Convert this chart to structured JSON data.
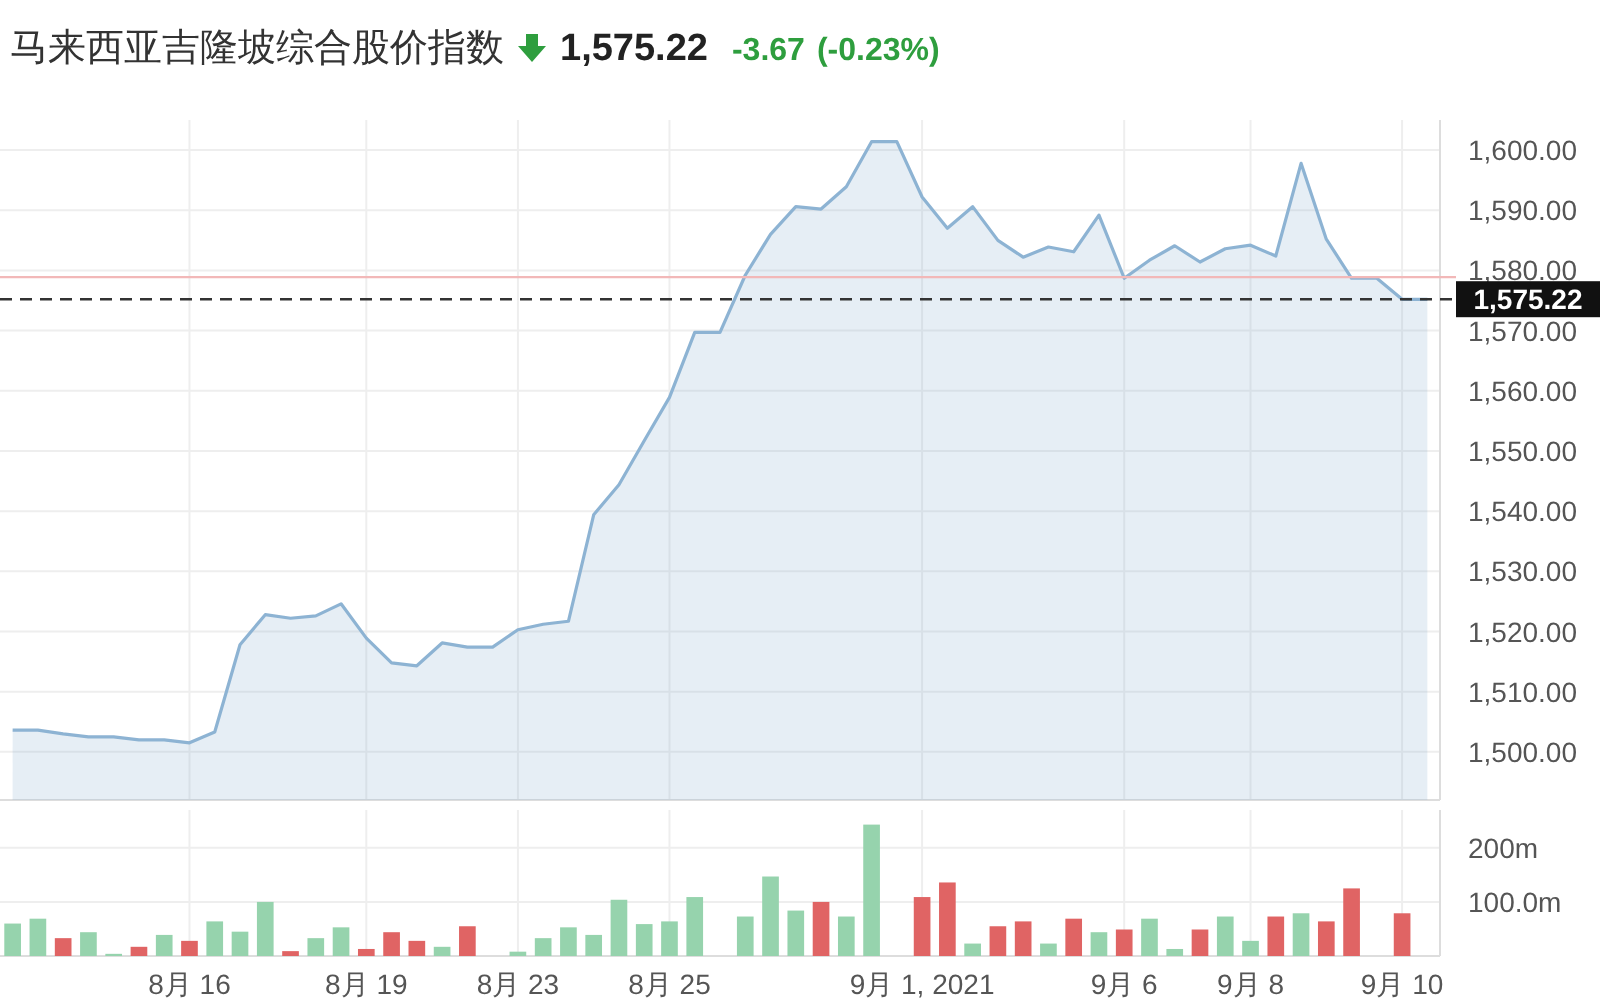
{
  "chart_data": [
    {
      "type": "area",
      "title": "马来西亚吉隆坡综合股价指数",
      "annotations": [
        "1,575.22",
        "-3.67",
        "(-0.23%)"
      ],
      "values": [
        1503.6,
        1503.6,
        1503,
        1502.5,
        1502.5,
        1502,
        1502,
        1501.5,
        1503.3,
        1517.8,
        1522.8,
        1522.2,
        1522.6,
        1524.6,
        1518.9,
        1514.8,
        1514.3,
        1518.1,
        1517.4,
        1517.4,
        1520.3,
        1521.2,
        1521.7,
        1539.4,
        1544.4,
        1551.7,
        1558.9,
        1569.7,
        1569.7,
        1579.2,
        1586,
        1590.6,
        1590.2,
        1593.9,
        1601.4,
        1601.4,
        1592.2,
        1587,
        1590.6,
        1585,
        1582.2,
        1583.9,
        1583.1,
        1589.2,
        1578.7,
        1581.7,
        1584.1,
        1581.4,
        1583.6,
        1584.2,
        1582.4,
        1597.8,
        1585.2,
        1578.7,
        1578.7,
        1575.2,
        1575.2
      ],
      "color": "#8db3d3",
      "ylim": [
        1492,
        1605
      ],
      "yticks": [
        {
          "value": 1500,
          "label": "1,500.00"
        },
        {
          "value": 1510,
          "label": "1,510.00"
        },
        {
          "value": 1520,
          "label": "1,520.00"
        },
        {
          "value": 1530,
          "label": "1,530.00"
        },
        {
          "value": 1540,
          "label": "1,540.00"
        },
        {
          "value": 1550,
          "label": "1,550.00"
        },
        {
          "value": 1560,
          "label": "1,560.00"
        },
        {
          "value": 1570,
          "label": "1,570.00"
        },
        {
          "value": 1580,
          "label": "1,580.00"
        },
        {
          "value": 1590,
          "label": "1,590.00"
        },
        {
          "value": 1600,
          "label": "1,600.00"
        }
      ],
      "tick_labels": "y",
      "grid": true,
      "ref_lines": [
        {
          "axis": "y",
          "value": 1578.89,
          "color": "#f2b8b8",
          "line_style": "solid"
        },
        {
          "axis": "y",
          "value": 1575.22,
          "label": "1,575.22",
          "color": "#333333",
          "line_style": "dashed"
        }
      ]
    },
    {
      "type": "bar",
      "categories": [
        null,
        null,
        null,
        null,
        null,
        null,
        null,
        "8月 16",
        null,
        null,
        null,
        null,
        null,
        null,
        "8月 19",
        null,
        null,
        null,
        null,
        null,
        "8月 23",
        null,
        null,
        null,
        null,
        null,
        "8月 25",
        null,
        null,
        null,
        null,
        null,
        null,
        null,
        null,
        null,
        "9月 1, 2021",
        null,
        null,
        null,
        null,
        null,
        null,
        null,
        "9月 6",
        null,
        null,
        null,
        null,
        "9月 8",
        null,
        null,
        null,
        null,
        null,
        "9月 10",
        null
      ],
      "values": [
        60,
        69,
        33,
        44,
        4,
        17,
        39,
        28,
        64,
        45,
        100,
        9,
        33,
        53,
        13,
        44,
        28,
        17,
        55,
        null,
        8,
        33,
        53,
        39,
        104,
        59,
        64,
        109,
        null,
        73,
        147,
        84,
        100,
        73,
        243,
        null,
        109,
        136,
        23,
        55,
        64,
        23,
        69,
        44,
        49,
        69,
        13,
        49,
        73,
        28,
        73,
        79,
        64,
        125,
        null,
        79,
        null
      ],
      "colors": [
        "#96d3ad",
        "#96d3ad",
        "#e06464",
        "#96d3ad",
        "#96d3ad",
        "#e06464",
        "#96d3ad",
        "#e06464",
        "#96d3ad",
        "#96d3ad",
        "#96d3ad",
        "#e06464",
        "#96d3ad",
        "#96d3ad",
        "#e06464",
        "#e06464",
        "#e06464",
        "#96d3ad",
        "#e06464",
        null,
        "#96d3ad",
        "#96d3ad",
        "#96d3ad",
        "#96d3ad",
        "#96d3ad",
        "#96d3ad",
        "#96d3ad",
        "#96d3ad",
        null,
        "#96d3ad",
        "#96d3ad",
        "#96d3ad",
        "#e06464",
        "#96d3ad",
        "#96d3ad",
        null,
        "#e06464",
        "#e06464",
        "#96d3ad",
        "#e06464",
        "#e06464",
        "#96d3ad",
        "#e06464",
        "#96d3ad",
        "#e06464",
        "#96d3ad",
        "#96d3ad",
        "#e06464",
        "#96d3ad",
        "#96d3ad",
        "#e06464",
        "#96d3ad",
        "#e06464",
        "#e06464",
        null,
        "#e06464",
        null
      ],
      "ylim": [
        0,
        270
      ],
      "yticks": [
        {
          "value": 100,
          "label": "100.0m"
        },
        {
          "value": 200,
          "label": "200m"
        }
      ],
      "grid": true
    }
  ]
}
